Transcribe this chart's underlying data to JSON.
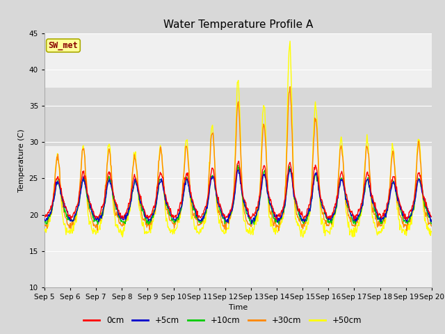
{
  "title": "Water Temperature Profile A",
  "xlabel": "Time",
  "ylabel": "Temperature (C)",
  "ylim": [
    10,
    45
  ],
  "yticks": [
    10,
    15,
    20,
    25,
    30,
    35,
    40,
    45
  ],
  "x_tick_labels": [
    "Sep 5",
    "Sep 6",
    "Sep 7",
    "Sep 8",
    "Sep 9",
    "Sep 10",
    "Sep 11",
    "Sep 12",
    "Sep 13",
    "Sep 14",
    "Sep 15",
    "Sep 16",
    "Sep 17",
    "Sep 18",
    "Sep 19",
    "Sep 20"
  ],
  "line_colors": {
    "0cm": "#ff0000",
    "+5cm": "#0000cc",
    "+10cm": "#00cc00",
    "+30cm": "#ff8800",
    "+50cm": "#ffff00"
  },
  "sw_met_label": "SW_met",
  "sw_met_box_color": "#ffff99",
  "sw_met_text_color": "#880000",
  "sw_met_edge_color": "#aaaa00",
  "background_color": "#d8d8d8",
  "plot_bg_color": "#f0f0f0",
  "grid_color": "#ffffff",
  "shaded_band": [
    29.5,
    37.5
  ],
  "shaded_color": "#d8d8d8",
  "line_width": 1.0,
  "title_fontsize": 11,
  "axis_label_fontsize": 8,
  "tick_fontsize": 7.5,
  "legend_fontsize": 8.5,
  "n_days": 15,
  "pts_per_day": 48,
  "yellow_spikes": [
    7,
    8,
    8,
    7,
    8,
    9,
    11,
    17,
    14,
    22,
    14,
    9,
    9,
    8,
    9
  ],
  "orange_spikes": [
    5.5,
    6.5,
    6.5,
    5.5,
    6.5,
    7,
    9,
    13,
    10,
    15,
    11,
    7,
    7,
    6,
    7
  ],
  "red_spikes": [
    2.0,
    2.5,
    2.5,
    2.0,
    2.5,
    2.5,
    3.0,
    4.0,
    3.5,
    4.0,
    3.5,
    2.5,
    2.5,
    2.0,
    2.5
  ],
  "blue_spikes": [
    1.8,
    2.2,
    2.2,
    1.8,
    2.2,
    2.2,
    2.8,
    3.5,
    3.0,
    3.5,
    3.0,
    2.2,
    2.2,
    1.8,
    2.2
  ],
  "green_spikes": [
    2.0,
    2.5,
    2.5,
    2.0,
    2.5,
    2.5,
    3.0,
    4.0,
    3.2,
    4.0,
    3.2,
    2.5,
    2.5,
    2.0,
    2.5
  ]
}
